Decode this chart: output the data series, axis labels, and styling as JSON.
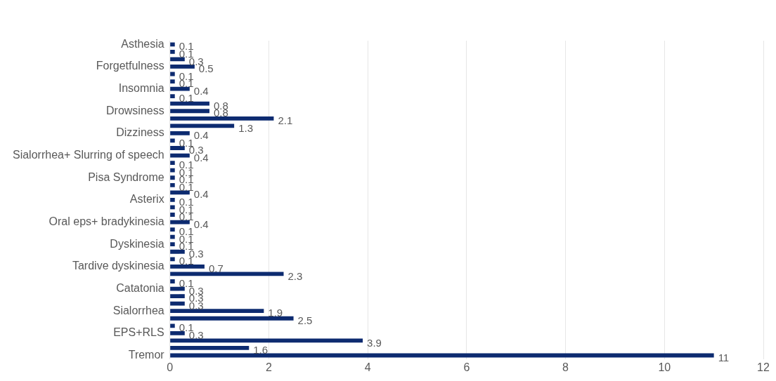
{
  "chart_data": {
    "type": "bar",
    "orientation": "horizontal",
    "categories": [
      "Asthesia",
      null,
      null,
      "Forgetfulness",
      null,
      null,
      "Insomnia",
      null,
      null,
      "Drowsiness",
      null,
      null,
      "Dizziness",
      null,
      null,
      "Sialorrhea+ Slurring of speech",
      null,
      null,
      "Pisa Syndrome",
      null,
      null,
      "Asterix",
      null,
      null,
      "Oral eps+ bradykinesia",
      null,
      null,
      "Dyskinesia",
      null,
      null,
      "Tardive dyskinesia",
      null,
      null,
      "Catatonia",
      null,
      null,
      "Sialorrhea",
      null,
      null,
      "EPS+RLS",
      null,
      null,
      "Tremor"
    ],
    "values": [
      0.1,
      0.1,
      0.3,
      0.5,
      0.1,
      0.1,
      0.4,
      0.1,
      0.8,
      0.8,
      2.1,
      1.3,
      0.4,
      0.1,
      0.3,
      0.4,
      0.1,
      0.1,
      0.1,
      0.1,
      0.4,
      0.1,
      0.1,
      0.1,
      0.4,
      0.1,
      0.1,
      0.1,
      0.3,
      0.1,
      0.7,
      2.3,
      0.1,
      0.3,
      0.3,
      0.3,
      1.9,
      2.5,
      0.1,
      0.3,
      3.9,
      1.6,
      11
    ],
    "color": "#0d2b70",
    "xlim": [
      0,
      12
    ],
    "xticks": [
      0,
      2,
      4,
      6,
      8,
      10,
      12
    ],
    "grid": "x",
    "legend": false,
    "data_labels": true
  }
}
